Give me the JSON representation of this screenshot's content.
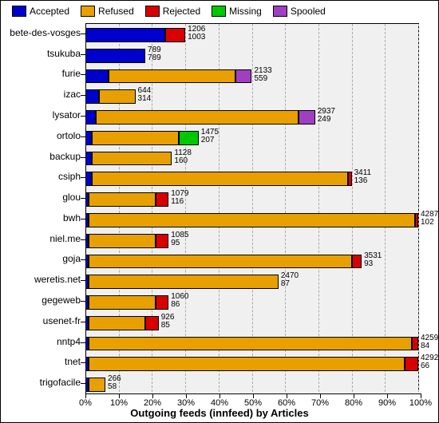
{
  "chart": {
    "type": "bar",
    "title": "Outgoing feeds (innfeed) by Articles",
    "title_fontsize": 13,
    "label_fontsize": 12,
    "value_fontsize": 10,
    "background_color": "#ffffff",
    "plot_background": "#f0f0f0",
    "grid_color": "#aaaaaa",
    "legend": [
      {
        "label": "Accepted",
        "color": "#0000cc"
      },
      {
        "label": "Refused",
        "color": "#e8a000"
      },
      {
        "label": "Rejected",
        "color": "#d80000"
      },
      {
        "label": "Missing",
        "color": "#00c800"
      },
      {
        "label": "Spooled",
        "color": "#a040c0"
      }
    ],
    "x_ticks": [
      "0%",
      "10%",
      "20%",
      "30%",
      "40%",
      "50%",
      "60%",
      "70%",
      "80%",
      "90%",
      "100%"
    ],
    "categories": [
      {
        "name": "bete-des-vosges",
        "total": 1206,
        "attempts": 1003,
        "segments": [
          {
            "k": "Accepted",
            "v": 24
          },
          {
            "k": "Rejected",
            "v": 6
          }
        ]
      },
      {
        "name": "tsukuba",
        "total": 789,
        "attempts": 789,
        "segments": [
          {
            "k": "Accepted",
            "v": 18
          }
        ]
      },
      {
        "name": "furie",
        "total": 2133,
        "attempts": 559,
        "segments": [
          {
            "k": "Accepted",
            "v": 7
          },
          {
            "k": "Refused",
            "v": 38
          },
          {
            "k": "Spooled",
            "v": 5
          }
        ]
      },
      {
        "name": "izac",
        "total": 644,
        "attempts": 314,
        "segments": [
          {
            "k": "Accepted",
            "v": 4
          },
          {
            "k": "Refused",
            "v": 11
          }
        ]
      },
      {
        "name": "lysator",
        "total": 2937,
        "attempts": 249,
        "segments": [
          {
            "k": "Accepted",
            "v": 3
          },
          {
            "k": "Refused",
            "v": 61
          },
          {
            "k": "Spooled",
            "v": 5
          }
        ]
      },
      {
        "name": "ortolo",
        "total": 1475,
        "attempts": 207,
        "segments": [
          {
            "k": "Accepted",
            "v": 2
          },
          {
            "k": "Refused",
            "v": 26
          },
          {
            "k": "Missing",
            "v": 6
          }
        ]
      },
      {
        "name": "backup",
        "total": 1128,
        "attempts": 160,
        "segments": [
          {
            "k": "Accepted",
            "v": 2
          },
          {
            "k": "Refused",
            "v": 24
          }
        ]
      },
      {
        "name": "csiph",
        "total": 3411,
        "attempts": 136,
        "segments": [
          {
            "k": "Accepted",
            "v": 2
          },
          {
            "k": "Refused",
            "v": 77
          },
          {
            "k": "Rejected",
            "v": 1
          }
        ]
      },
      {
        "name": "glou",
        "total": 1079,
        "attempts": 116,
        "segments": [
          {
            "k": "Accepted",
            "v": 1
          },
          {
            "k": "Refused",
            "v": 20
          },
          {
            "k": "Rejected",
            "v": 4
          }
        ]
      },
      {
        "name": "bwh",
        "total": 4287,
        "attempts": 102,
        "segments": [
          {
            "k": "Accepted",
            "v": 1
          },
          {
            "k": "Refused",
            "v": 98
          },
          {
            "k": "Rejected",
            "v": 1
          }
        ]
      },
      {
        "name": "niel.me",
        "total": 1085,
        "attempts": 95,
        "segments": [
          {
            "k": "Accepted",
            "v": 1
          },
          {
            "k": "Refused",
            "v": 20
          },
          {
            "k": "Rejected",
            "v": 4
          }
        ]
      },
      {
        "name": "goja",
        "total": 3531,
        "attempts": 93,
        "segments": [
          {
            "k": "Accepted",
            "v": 1
          },
          {
            "k": "Refused",
            "v": 79
          },
          {
            "k": "Rejected",
            "v": 3
          }
        ]
      },
      {
        "name": "weretis.net",
        "total": 2470,
        "attempts": 87,
        "segments": [
          {
            "k": "Accepted",
            "v": 1
          },
          {
            "k": "Refused",
            "v": 57
          }
        ]
      },
      {
        "name": "gegeweb",
        "total": 1060,
        "attempts": 86,
        "segments": [
          {
            "k": "Accepted",
            "v": 1
          },
          {
            "k": "Refused",
            "v": 20
          },
          {
            "k": "Rejected",
            "v": 4
          }
        ]
      },
      {
        "name": "usenet-fr",
        "total": 926,
        "attempts": 85,
        "segments": [
          {
            "k": "Accepted",
            "v": 1
          },
          {
            "k": "Refused",
            "v": 17
          },
          {
            "k": "Rejected",
            "v": 4
          }
        ]
      },
      {
        "name": "nntp4",
        "total": 4259,
        "attempts": 84,
        "segments": [
          {
            "k": "Accepted",
            "v": 1
          },
          {
            "k": "Refused",
            "v": 97
          },
          {
            "k": "Rejected",
            "v": 2
          }
        ]
      },
      {
        "name": "tnet",
        "total": 4292,
        "attempts": 66,
        "segments": [
          {
            "k": "Accepted",
            "v": 1
          },
          {
            "k": "Refused",
            "v": 95
          },
          {
            "k": "Rejected",
            "v": 4
          }
        ]
      },
      {
        "name": "trigofacile",
        "total": 266,
        "attempts": 58,
        "segments": [
          {
            "k": "Accepted",
            "v": 1
          },
          {
            "k": "Refused",
            "v": 5
          }
        ]
      }
    ]
  }
}
